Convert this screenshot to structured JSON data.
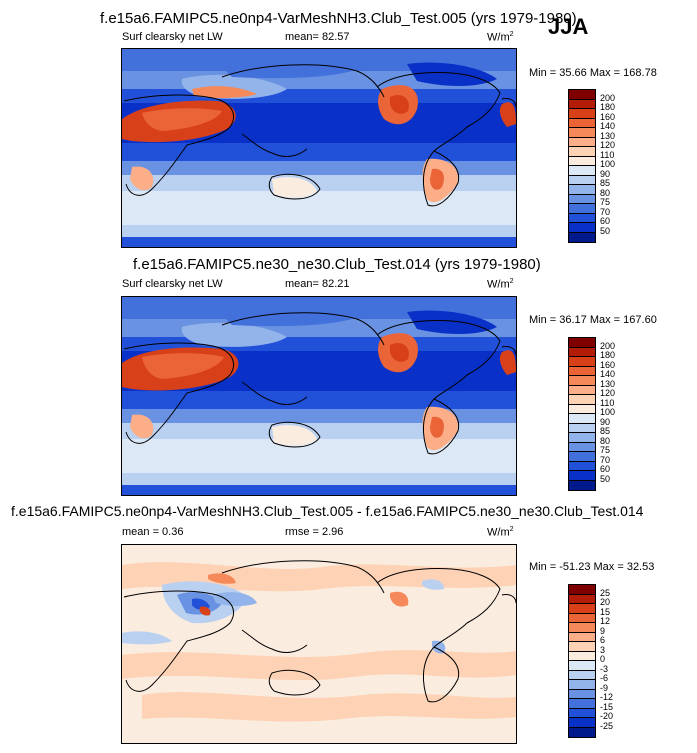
{
  "season": "JJA",
  "panels": [
    {
      "title": "f.e15a6.FAMIPC5.ne0np4-VarMeshNH3.Club_Test.005 (yrs 1979-1980)",
      "field": "Surf clearsky net LW",
      "mean_text": "mean=  82.57",
      "units": "W/m",
      "units_sup": "2",
      "minmax": "Min =  35.66 Max = 168.78"
    },
    {
      "title": "f.e15a6.FAMIPC5.ne30_ne30.Club_Test.014 (yrs 1979-1980)",
      "field": "Surf clearsky net LW",
      "mean_text": "mean=  82.21",
      "units": "W/m",
      "units_sup": "2",
      "minmax": "Min =  36.17 Max = 167.60"
    },
    {
      "title": "f.e15a6.FAMIPC5.ne0np4-VarMeshNH3.Club_Test.005 - f.e15a6.FAMIPC5.ne30_ne30.Club_Test.014",
      "mean_text": "mean =   0.36",
      "rmse_text": "rmse =   2.96",
      "units": "W/m",
      "units_sup": "2",
      "minmax": "Min = -51.23 Max =  32.53"
    }
  ],
  "chart_data": [
    {
      "type": "heatmap",
      "title": "f.e15a6.FAMIPC5.ne0np4-VarMeshNH3.Club_Test.005 (yrs 1979-1980)",
      "subtitle": "Surf clearsky net LW",
      "mean": 82.57,
      "min": 35.66,
      "max": 168.78,
      "units": "W/m2",
      "colorbar_levels": [
        "200",
        "180",
        "160",
        "140",
        "130",
        "120",
        "110",
        "100",
        "90",
        "85",
        "80",
        "75",
        "70",
        "60",
        "50"
      ],
      "colorbar_colors": [
        "#7f0000",
        "#b31d07",
        "#d8401a",
        "#ea6438",
        "#f5895a",
        "#fbae88",
        "#fdd2b5",
        "#fbece0",
        "#dde8f7",
        "#b9d0f0",
        "#93b4ea",
        "#6a92e2",
        "#4371dc",
        "#2151d8",
        "#0a31c7",
        "#001a8c"
      ]
    },
    {
      "type": "heatmap",
      "title": "f.e15a6.FAMIPC5.ne30_ne30.Club_Test.014 (yrs 1979-1980)",
      "subtitle": "Surf clearsky net LW",
      "mean": 82.21,
      "min": 36.17,
      "max": 167.6,
      "units": "W/m2",
      "colorbar_levels": [
        "200",
        "180",
        "160",
        "140",
        "130",
        "120",
        "110",
        "100",
        "90",
        "85",
        "80",
        "75",
        "70",
        "60",
        "50"
      ],
      "colorbar_colors": [
        "#7f0000",
        "#b31d07",
        "#d8401a",
        "#ea6438",
        "#f5895a",
        "#fbae88",
        "#fdd2b5",
        "#fbece0",
        "#dde8f7",
        "#b9d0f0",
        "#93b4ea",
        "#6a92e2",
        "#4371dc",
        "#2151d8",
        "#0a31c7",
        "#001a8c"
      ]
    },
    {
      "type": "heatmap",
      "title": "f.e15a6.FAMIPC5.ne0np4-VarMeshNH3.Club_Test.005 - f.e15a6.FAMIPC5.ne30_ne30.Club_Test.014",
      "mean": 0.36,
      "rmse": 2.96,
      "min": -51.23,
      "max": 32.53,
      "units": "W/m2",
      "colorbar_levels": [
        "25",
        "20",
        "15",
        "12",
        "9",
        "6",
        "3",
        "0",
        "-3",
        "-6",
        "-9",
        "-12",
        "-15",
        "-20",
        "-25"
      ],
      "colorbar_colors": [
        "#7f0000",
        "#b31d07",
        "#d8401a",
        "#ea6438",
        "#f5895a",
        "#fbae88",
        "#fdd2b5",
        "#fbece0",
        "#dde8f7",
        "#b9d0f0",
        "#93b4ea",
        "#6a92e2",
        "#4371dc",
        "#2151d8",
        "#0a31c7",
        "#001a8c"
      ]
    }
  ]
}
